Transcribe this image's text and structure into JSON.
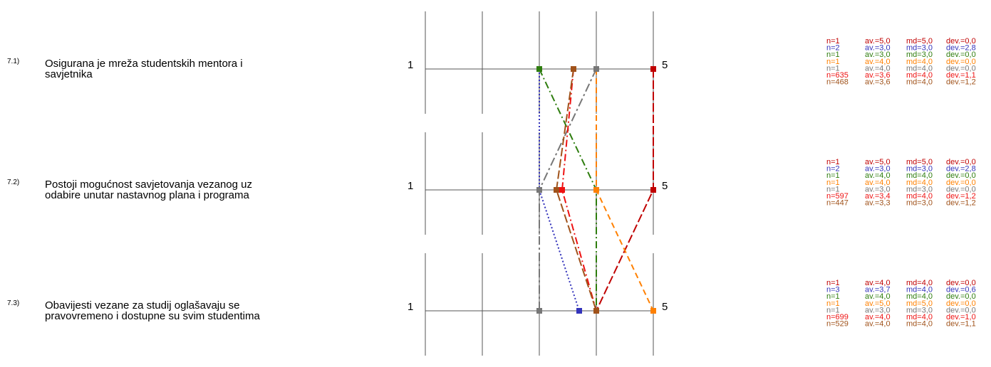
{
  "chart_data": {
    "type": "line",
    "x_scale": [
      1,
      5
    ],
    "scale_min_label": "1",
    "scale_max_label": "5",
    "questions": [
      {
        "number": "7.1)",
        "text_lines": [
          "Osigurana je mreža studentskih mentora i",
          "savjetnika"
        ],
        "stats": [
          {
            "n": "n=1",
            "av": "av.=5,0",
            "md": "md=5,0",
            "dev": "dev.=0,0"
          },
          {
            "n": "n=2",
            "av": "av.=3,0",
            "md": "md=3,0",
            "dev": "dev.=2,8"
          },
          {
            "n": "n=1",
            "av": "av.=3,0",
            "md": "md=3,0",
            "dev": "dev.=0,0"
          },
          {
            "n": "n=1",
            "av": "av.=4,0",
            "md": "md=4,0",
            "dev": "dev.=0,0"
          },
          {
            "n": "n=1",
            "av": "av.=4,0",
            "md": "md=4,0",
            "dev": "dev.=0,0"
          },
          {
            "n": "n=635",
            "av": "av.=3,6",
            "md": "md=4,0",
            "dev": "dev.=1,1"
          },
          {
            "n": "n=468",
            "av": "av.=3,6",
            "md": "md=4,0",
            "dev": "dev.=1,2"
          }
        ]
      },
      {
        "number": "7.2)",
        "text_lines": [
          "Postoji mogućnost savjetovanja vezanog uz",
          "odabire unutar nastavnog plana i programa"
        ],
        "stats": [
          {
            "n": "n=1",
            "av": "av.=5,0",
            "md": "md=5,0",
            "dev": "dev.=0,0"
          },
          {
            "n": "n=2",
            "av": "av.=3,0",
            "md": "md=3,0",
            "dev": "dev.=2,8"
          },
          {
            "n": "n=1",
            "av": "av.=4,0",
            "md": "md=4,0",
            "dev": "dev.=0,0"
          },
          {
            "n": "n=1",
            "av": "av.=4,0",
            "md": "md=4,0",
            "dev": "dev.=0,0"
          },
          {
            "n": "n=1",
            "av": "av.=3,0",
            "md": "md=3,0",
            "dev": "dev.=0,0"
          },
          {
            "n": "n=597",
            "av": "av.=3,4",
            "md": "md=4,0",
            "dev": "dev.=1,2"
          },
          {
            "n": "n=447",
            "av": "av.=3,3",
            "md": "md=3,0",
            "dev": "dev.=1,2"
          }
        ]
      },
      {
        "number": "7.3)",
        "text_lines": [
          "Obavijesti vezane za studij oglašavaju se",
          "pravovremeno i dostupne su svim studentima"
        ],
        "stats": [
          {
            "n": "n=1",
            "av": "av.=4,0",
            "md": "md=4,0",
            "dev": "dev.=0,0"
          },
          {
            "n": "n=3",
            "av": "av.=3,7",
            "md": "md=4,0",
            "dev": "dev.=0,6"
          },
          {
            "n": "n=1",
            "av": "av.=4,0",
            "md": "md=4,0",
            "dev": "dev.=0,0"
          },
          {
            "n": "n=1",
            "av": "av.=5,0",
            "md": "md=5,0",
            "dev": "dev.=0,0"
          },
          {
            "n": "n=1",
            "av": "av.=3,0",
            "md": "md=3,0",
            "dev": "dev.=0,0"
          },
          {
            "n": "n=699",
            "av": "av.=4,0",
            "md": "md=4,0",
            "dev": "dev.=1,0"
          },
          {
            "n": "n=529",
            "av": "av.=4,0",
            "md": "md=4,0",
            "dev": "dev.=1,1"
          }
        ]
      }
    ],
    "series": [
      {
        "color": "#c00000",
        "dash": "long-dash",
        "values": [
          5.0,
          5.0,
          4.0
        ]
      },
      {
        "color": "#3333bb",
        "dash": "dotted",
        "values": [
          3.0,
          3.0,
          3.7
        ]
      },
      {
        "color": "#2e7d0e",
        "dash": "dash-dot",
        "values": [
          3.0,
          4.0,
          4.0
        ]
      },
      {
        "color": "#ff8000",
        "dash": "dashed",
        "values": [
          4.0,
          4.0,
          5.0
        ]
      },
      {
        "color": "#777777",
        "dash": "dash-dot-long",
        "values": [
          4.0,
          3.0,
          3.0
        ]
      },
      {
        "color": "#ee1111",
        "dash": "dash-dot",
        "values": [
          3.6,
          3.4,
          4.0
        ]
      },
      {
        "color": "#a0521a",
        "dash": "long-dash",
        "values": [
          3.6,
          3.3,
          4.0
        ]
      }
    ]
  }
}
